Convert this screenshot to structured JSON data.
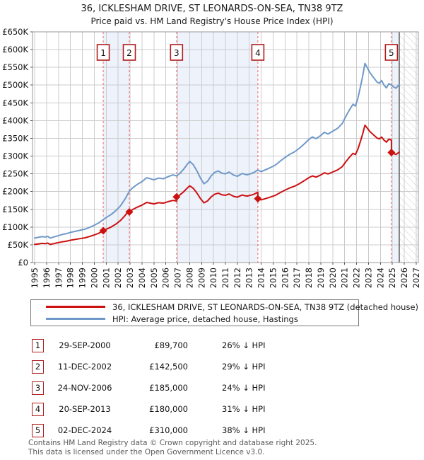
{
  "title": "36, ICKLESHAM DRIVE, ST LEONARDS-ON-SEA, TN38 9TZ",
  "subtitle": "Price paid vs. HM Land Registry's House Price Index (HPI)",
  "colors": {
    "property_line": "#cc1111",
    "hpi_line": "#7099c9",
    "sale_dash_line": "#f47c7c",
    "marker_box_border": "#b01c1c",
    "ownership_band": "#edf2fb",
    "grid": "#cccccc",
    "plot_border": "#999999",
    "data_end_line": "#555555",
    "hatch": "#cccccc"
  },
  "legend": {
    "items": [
      {
        "label": "36, ICKLESHAM DRIVE, ST LEONARDS-ON-SEA, TN38 9TZ (detached house)",
        "color": "#cc1111"
      },
      {
        "label": "HPI: Average price, detached house, Hastings",
        "color": "#7099c9"
      }
    ]
  },
  "transactions": [
    {
      "num": "1",
      "date": "29-SEP-2000",
      "price": "£89,700",
      "hpi_diff": "26% ↓ HPI"
    },
    {
      "num": "2",
      "date": "11-DEC-2002",
      "price": "£142,500",
      "hpi_diff": "29% ↓ HPI"
    },
    {
      "num": "3",
      "date": "24-NOV-2006",
      "price": "£185,000",
      "hpi_diff": "24% ↓ HPI"
    },
    {
      "num": "4",
      "date": "20-SEP-2013",
      "price": "£180,000",
      "hpi_diff": "31% ↓ HPI"
    },
    {
      "num": "5",
      "date": "02-DEC-2024",
      "price": "£310,000",
      "hpi_diff": "38% ↓ HPI"
    }
  ],
  "footer": {
    "line1": "Contains HM Land Registry data © Crown copyright and database right 2025.",
    "line2": "This data is licensed under the Open Government Licence v3.0."
  },
  "chart_data": {
    "type": "line",
    "title": "Price paid vs. HM Land Registry's House Price Index (HPI)",
    "xlabel": "",
    "ylabel": "",
    "x_range": [
      1994.82,
      2027.18
    ],
    "y_range_k": [
      0,
      650
    ],
    "grid": true,
    "legend_position": "bottom",
    "x_ticks": [
      1995,
      1996,
      1997,
      1998,
      1999,
      2000,
      2001,
      2002,
      2003,
      2004,
      2005,
      2006,
      2007,
      2008,
      2009,
      2010,
      2011,
      2012,
      2013,
      2014,
      2015,
      2016,
      2017,
      2018,
      2019,
      2020,
      2021,
      2022,
      2023,
      2024,
      2025,
      2026,
      2027
    ],
    "y_ticks": [
      {
        "value": 0,
        "label": "£0"
      },
      {
        "value": 50,
        "label": "£50K"
      },
      {
        "value": 100,
        "label": "£100K"
      },
      {
        "value": 150,
        "label": "£150K"
      },
      {
        "value": 200,
        "label": "£200K"
      },
      {
        "value": 250,
        "label": "£250K"
      },
      {
        "value": 300,
        "label": "£300K"
      },
      {
        "value": 350,
        "label": "£350K"
      },
      {
        "value": 400,
        "label": "£400K"
      },
      {
        "value": 450,
        "label": "£450K"
      },
      {
        "value": 500,
        "label": "£500K"
      },
      {
        "value": 550,
        "label": "£550K"
      },
      {
        "value": 600,
        "label": "£600K"
      },
      {
        "value": 650,
        "label": "£650K"
      }
    ],
    "ownership_bands": [
      [
        2000.75,
        2002.94
      ],
      [
        2006.9,
        2013.72
      ],
      [
        2024.92,
        2025.58
      ]
    ],
    "future_hatch": [
      2025.58,
      2027.18
    ],
    "data_end_x": 2025.58,
    "sales": [
      {
        "num": "1",
        "x": 2000.75,
        "price_k": 89.7,
        "date": "29-SEP-2000"
      },
      {
        "num": "2",
        "x": 2002.94,
        "price_k": 142.5,
        "date": "11-DEC-2002"
      },
      {
        "num": "3",
        "x": 2006.9,
        "price_k": 185,
        "date": "24-NOV-2006"
      },
      {
        "num": "4",
        "x": 2013.72,
        "price_k": 180,
        "date": "20-SEP-2013"
      },
      {
        "num": "5",
        "x": 2024.92,
        "price_k": 310,
        "date": "02-DEC-2024"
      }
    ],
    "series": [
      {
        "name": "36, ICKLESHAM DRIVE, ST LEONARDS-ON-SEA, TN38 9TZ (detached house)",
        "color": "#cc1111",
        "unit": "GBP thousands",
        "points": [
          [
            1995,
            51
          ],
          [
            1995.3,
            52.5
          ],
          [
            1995.6,
            54
          ],
          [
            1995.9,
            53.3
          ],
          [
            1996.1,
            54.8
          ],
          [
            1996.3,
            51.1
          ],
          [
            1996.5,
            52.5
          ],
          [
            1996.8,
            54.8
          ],
          [
            1997,
            56.2
          ],
          [
            1997.3,
            58.5
          ],
          [
            1997.6,
            59.9
          ],
          [
            1998,
            62.9
          ],
          [
            1998.4,
            65.1
          ],
          [
            1998.8,
            67.3
          ],
          [
            1999.2,
            69.6
          ],
          [
            1999.6,
            73.3
          ],
          [
            2000,
            77.7
          ],
          [
            2000.4,
            82.9
          ],
          [
            2000.75,
            89.7
          ],
          [
            2001,
            94
          ],
          [
            2001.4,
            99.9
          ],
          [
            2001.8,
            108
          ],
          [
            2002.2,
            118.4
          ],
          [
            2002.6,
            133.2
          ],
          [
            2002.94,
            148.7
          ],
          [
            2002.94,
            142.5
          ],
          [
            2003.2,
            148.9
          ],
          [
            2003.6,
            156
          ],
          [
            2004,
            161.7
          ],
          [
            2004.4,
            169.4
          ],
          [
            2004.7,
            167.3
          ],
          [
            2005,
            165.2
          ],
          [
            2005.4,
            168.7
          ],
          [
            2005.8,
            167.3
          ],
          [
            2006.2,
            171.6
          ],
          [
            2006.6,
            175.1
          ],
          [
            2006.9,
            173
          ],
          [
            2006.9,
            185
          ],
          [
            2007.2,
            191.1
          ],
          [
            2007.5,
            199.4
          ],
          [
            2007.8,
            210
          ],
          [
            2008,
            216.1
          ],
          [
            2008.3,
            209.3
          ],
          [
            2008.6,
            196.4
          ],
          [
            2008.9,
            180.5
          ],
          [
            2009.2,
            168.3
          ],
          [
            2009.5,
            173.6
          ],
          [
            2009.8,
            185
          ],
          [
            2010.1,
            192.6
          ],
          [
            2010.4,
            195.6
          ],
          [
            2010.7,
            191.1
          ],
          [
            2011,
            189.6
          ],
          [
            2011.3,
            193.3
          ],
          [
            2011.7,
            186.5
          ],
          [
            2012,
            184.2
          ],
          [
            2012.4,
            190.3
          ],
          [
            2012.8,
            187.3
          ],
          [
            2013.1,
            189.6
          ],
          [
            2013.4,
            192.6
          ],
          [
            2013.72,
            197.9
          ],
          [
            2013.72,
            180
          ],
          [
            2014,
            176.6
          ],
          [
            2014.4,
            180.7
          ],
          [
            2014.8,
            184.8
          ],
          [
            2015.2,
            189.7
          ],
          [
            2015.6,
            197.2
          ],
          [
            2016,
            204.2
          ],
          [
            2016.4,
            210.4
          ],
          [
            2016.8,
            215.2
          ],
          [
            2017.2,
            222.1
          ],
          [
            2017.6,
            230.4
          ],
          [
            2018,
            239.3
          ],
          [
            2018.3,
            244.1
          ],
          [
            2018.6,
            240.7
          ],
          [
            2019,
            246.9
          ],
          [
            2019.3,
            253.1
          ],
          [
            2019.6,
            249.7
          ],
          [
            2020,
            255.2
          ],
          [
            2020.4,
            260.7
          ],
          [
            2020.8,
            270.4
          ],
          [
            2021.1,
            284.2
          ],
          [
            2021.4,
            296.6
          ],
          [
            2021.7,
            307.6
          ],
          [
            2021.9,
            304.2
          ],
          [
            2022.1,
            318.7
          ],
          [
            2022.3,
            339.3
          ],
          [
            2022.5,
            360.7
          ],
          [
            2022.7,
            387
          ],
          [
            2022.9,
            378.6
          ],
          [
            2023.1,
            369.7
          ],
          [
            2023.3,
            363.5
          ],
          [
            2023.5,
            357.3
          ],
          [
            2023.7,
            351.1
          ],
          [
            2023.9,
            348.3
          ],
          [
            2024.1,
            353.8
          ],
          [
            2024.3,
            344.9
          ],
          [
            2024.5,
            339.3
          ],
          [
            2024.7,
            347.6
          ],
          [
            2024.92,
            344.9
          ],
          [
            2024.92,
            310
          ],
          [
            2025.1,
            306.9
          ],
          [
            2025.3,
            304.4
          ],
          [
            2025.58,
            311.2
          ]
        ]
      },
      {
        "name": "HPI: Average price, detached house, Hastings",
        "color": "#7099c9",
        "unit": "GBP thousands",
        "points": [
          [
            1995,
            69
          ],
          [
            1995.3,
            71
          ],
          [
            1995.6,
            73
          ],
          [
            1995.9,
            72
          ],
          [
            1996.1,
            74
          ],
          [
            1996.3,
            69
          ],
          [
            1996.5,
            71
          ],
          [
            1996.8,
            74
          ],
          [
            1997,
            76
          ],
          [
            1997.3,
            79
          ],
          [
            1997.6,
            81
          ],
          [
            1998,
            85
          ],
          [
            1998.4,
            88
          ],
          [
            1998.8,
            91
          ],
          [
            1999.2,
            94
          ],
          [
            1999.6,
            99
          ],
          [
            2000,
            105
          ],
          [
            2000.4,
            112
          ],
          [
            2000.75,
            121
          ],
          [
            2001,
            127
          ],
          [
            2001.4,
            135
          ],
          [
            2001.8,
            146
          ],
          [
            2002.2,
            160
          ],
          [
            2002.6,
            180
          ],
          [
            2002.94,
            201
          ],
          [
            2003.2,
            210
          ],
          [
            2003.6,
            220
          ],
          [
            2004,
            228
          ],
          [
            2004.4,
            239
          ],
          [
            2004.7,
            236
          ],
          [
            2005,
            233
          ],
          [
            2005.4,
            238
          ],
          [
            2005.8,
            236
          ],
          [
            2006.2,
            242
          ],
          [
            2006.6,
            247
          ],
          [
            2006.9,
            244
          ],
          [
            2007.2,
            252
          ],
          [
            2007.5,
            263
          ],
          [
            2007.8,
            277
          ],
          [
            2008,
            285
          ],
          [
            2008.3,
            276
          ],
          [
            2008.6,
            259
          ],
          [
            2008.9,
            238
          ],
          [
            2009.2,
            222
          ],
          [
            2009.5,
            229
          ],
          [
            2009.8,
            244
          ],
          [
            2010.1,
            254
          ],
          [
            2010.4,
            258
          ],
          [
            2010.7,
            252
          ],
          [
            2011,
            250
          ],
          [
            2011.3,
            255
          ],
          [
            2011.7,
            246
          ],
          [
            2012,
            243
          ],
          [
            2012.4,
            251
          ],
          [
            2012.8,
            247
          ],
          [
            2013.1,
            250
          ],
          [
            2013.4,
            254
          ],
          [
            2013.72,
            261
          ],
          [
            2014,
            256
          ],
          [
            2014.4,
            262
          ],
          [
            2014.8,
            268
          ],
          [
            2015.2,
            275
          ],
          [
            2015.6,
            286
          ],
          [
            2016,
            296
          ],
          [
            2016.4,
            305
          ],
          [
            2016.8,
            312
          ],
          [
            2017.2,
            322
          ],
          [
            2017.6,
            334
          ],
          [
            2018,
            347
          ],
          [
            2018.3,
            354
          ],
          [
            2018.6,
            349
          ],
          [
            2019,
            358
          ],
          [
            2019.3,
            367
          ],
          [
            2019.6,
            362
          ],
          [
            2020,
            370
          ],
          [
            2020.4,
            378
          ],
          [
            2020.8,
            392
          ],
          [
            2021.1,
            412
          ],
          [
            2021.4,
            430
          ],
          [
            2021.7,
            446
          ],
          [
            2021.9,
            441
          ],
          [
            2022.1,
            462
          ],
          [
            2022.3,
            492
          ],
          [
            2022.5,
            523
          ],
          [
            2022.7,
            561
          ],
          [
            2022.9,
            549
          ],
          [
            2023.1,
            536
          ],
          [
            2023.3,
            527
          ],
          [
            2023.5,
            518
          ],
          [
            2023.7,
            509
          ],
          [
            2023.9,
            505
          ],
          [
            2024.1,
            513
          ],
          [
            2024.3,
            500
          ],
          [
            2024.5,
            492
          ],
          [
            2024.7,
            504
          ],
          [
            2024.92,
            500
          ],
          [
            2025.1,
            495
          ],
          [
            2025.3,
            491
          ],
          [
            2025.58,
            502
          ]
        ]
      }
    ]
  }
}
